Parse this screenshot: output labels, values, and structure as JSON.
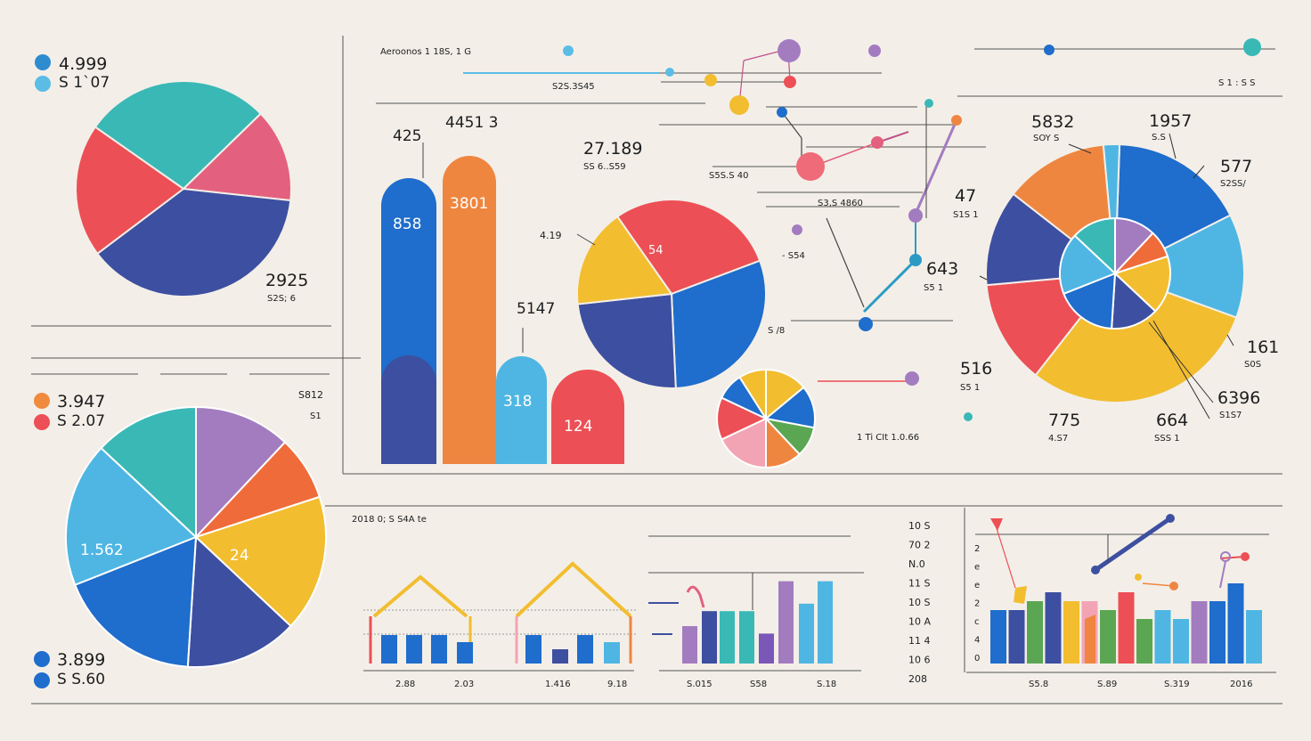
{
  "colors": {
    "background": "#f3efe8",
    "teal": "#3ab8b6",
    "red": "#ec4f55",
    "pink": "#e4607f",
    "navy": "#3d4fa0",
    "blue": "#1f6dcc",
    "sky": "#4fb6e3",
    "orange": "#ef8640",
    "yellow": "#f2bd2f",
    "purple": "#a37cc0",
    "green": "#5ba652",
    "lightpink": "#f3a4b4"
  },
  "legend_top_left": [
    {
      "color": "#2d8bd0",
      "text": "4.999"
    },
    {
      "color": "#5bbde6",
      "text": "S 1`07"
    }
  ],
  "legend_mid_left": [
    {
      "color": "#f08a3c",
      "text": "3.947"
    },
    {
      "color": "#ec4f55",
      "text": "S 2.07"
    }
  ],
  "legend_bottom_left": [
    {
      "color": "#1f6dcc",
      "text": "3.899"
    },
    {
      "color": "#1f6dcc",
      "text": "S S.60"
    }
  ],
  "top_header": {
    "title": "Aeroonos 1 18S, 1 G",
    "sub": "S2S.3S45",
    "right": "S 1 : S  S"
  },
  "labels": {
    "pie1_value": "2925",
    "pie1_sub": "S2S; 6",
    "bar_425": "425",
    "bar_44513": "4451 3",
    "bar_858": "858",
    "bar_3801": "3801",
    "bar_5147": "5147",
    "bar_318": "318",
    "bar_124": "124",
    "v_27189": "27.189",
    "v_27189_sub": "SS 6..S59",
    "v_419": "4.19",
    "v_54": "54",
    "v_s812": "S812",
    "v_s812_sub": "S1",
    "mid_sub_a": "S5S.S 40",
    "mid_sub_b": "S3,S 4860",
    "mid_sub_c": "- S54",
    "mid_sub_d": "S /8",
    "v_47": "47",
    "v_47_sub": "S1S 1",
    "v_643": "643",
    "v_643_sub": "S5 1",
    "v_516": "516",
    "v_516_sub": "S5 1",
    "small_pie_caption": "1 Ti CIt 1.0.66",
    "v_5832": "5832",
    "v_5832_sub": "SOY S",
    "v_1957": "1957",
    "v_1957_sub": "S.S",
    "v_577": "577",
    "v_577_sub": "S2SS/",
    "v_161": "161",
    "v_161_sub": "S0S",
    "v_6396": "6396",
    "v_6396_sub": "S1S7",
    "v_775": "775",
    "v_775_sub": "4.S7",
    "v_664": "664",
    "v_664_sub": "SSS 1",
    "pie4_a": "1.562",
    "pie4_b": "24",
    "bottom_header": "2018 0; S S4A  te",
    "b_x1": "2.88",
    "b_x2": "2.03",
    "b_x3": "1.416",
    "b_x4": "9.18",
    "b_x5": "S.015",
    "b_x6": "S58",
    "b_x7": "S.18",
    "b_x8": "S5.8",
    "b_x9": "S.89",
    "b_x10": "S.319",
    "b_x11": "2016",
    "r_scale": [
      "10 S",
      "70 2",
      "N.0",
      "11 S",
      "10 S",
      "10 A",
      "11 4",
      "10 6",
      "208"
    ],
    "r_ticks": [
      "2",
      "e",
      "e",
      "2",
      "c",
      "4",
      "0"
    ]
  },
  "chart_data": [
    {
      "type": "pie",
      "values": [
        28,
        14,
        38,
        20
      ],
      "colors": [
        "#3ab8b6",
        "#e4607f",
        "#3d4fa0",
        "#ec4f55"
      ]
    },
    {
      "type": "bar",
      "categories": [
        "",
        "",
        "",
        ""
      ],
      "values": [
        858,
        3801,
        318,
        124
      ],
      "colors": [
        "#1f6dcc",
        "#ef8640",
        "#4fb6e3",
        "#ec4f55"
      ]
    },
    {
      "type": "pie",
      "values": [
        29,
        30,
        24,
        17
      ],
      "colors": [
        "#ec4f55",
        "#1f6dcc",
        "#3d4fa0",
        "#f2bd2f"
      ]
    },
    {
      "type": "pie",
      "values": [
        14,
        14,
        10,
        12,
        18,
        14,
        9,
        9
      ],
      "colors": [
        "#f2bd2f",
        "#1f6dcc",
        "#5ba652",
        "#ef8640",
        "#f3a4b4",
        "#ec4f55",
        "#1f6dcc",
        "#f2bd2f"
      ]
    },
    {
      "type": "pie",
      "values": [
        17,
        13,
        30,
        13,
        12,
        13,
        2
      ],
      "colors": [
        "#1f6dcc",
        "#4fb6e3",
        "#f2bd2f",
        "#ec4f55",
        "#3d4fa0",
        "#ef8640",
        "#4fb6e3"
      ]
    },
    {
      "type": "pie",
      "values": [
        12,
        8,
        17,
        14,
        18,
        18,
        13
      ],
      "colors": [
        "#a37cc0",
        "#ef6b3a",
        "#f2bd2f",
        "#3d4fa0",
        "#1f6dcc",
        "#4fb6e3",
        "#3ab8b6"
      ]
    },
    {
      "type": "bar",
      "series": [
        {
          "values": [
            4,
            4,
            4,
            3
          ]
        },
        {
          "values": [
            4,
            2,
            4,
            3
          ]
        }
      ]
    },
    {
      "type": "bar",
      "values": [
        5,
        7,
        7,
        7,
        4,
        11,
        8,
        11
      ],
      "colors": [
        "#a37cc0",
        "#3d4fa0",
        "#3ab8b6",
        "#3ab8b6",
        "#7a58b8",
        "#a37cc0",
        "#4fb6e3",
        "#4fb6e3"
      ]
    },
    {
      "type": "bar",
      "values": [
        6,
        6,
        7,
        8,
        7,
        7,
        6,
        8,
        5,
        6,
        5,
        7,
        7,
        9,
        6
      ],
      "colors": [
        "#1f6dcc",
        "#3d4fa0",
        "#5ba652",
        "#3d4fa0",
        "#f2bd2f",
        "#f3a4b4",
        "#5ba652",
        "#ec4f55",
        "#5ba652",
        "#4fb6e3",
        "#4fb6e3",
        "#a37cc0",
        "#1f6dcc",
        "#1f6dcc",
        "#4fb6e3"
      ]
    }
  ]
}
